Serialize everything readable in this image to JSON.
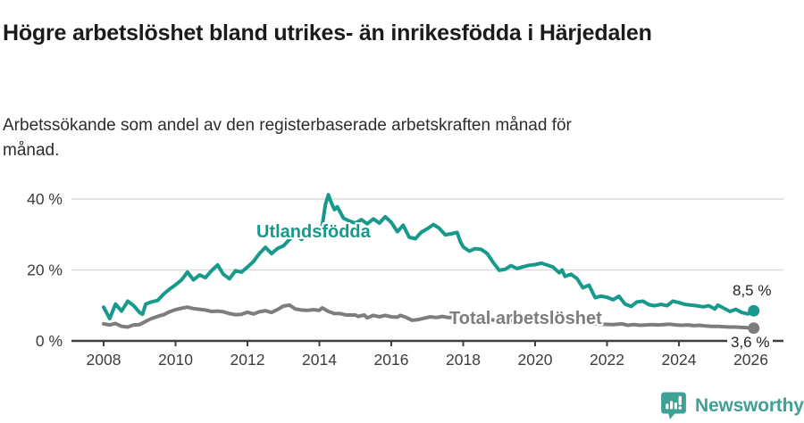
{
  "chart_data": {
    "type": "line",
    "title": "Högre arbetslöshet bland utrikes- än inrikesfödda i Härjedalen",
    "subtitle": "Arbetssökande som andel av den registerbaserade arbetskraften månad för månad.",
    "grid": true,
    "legend_position": "inline-labels-on-lines",
    "x_axis": {
      "ticks": [
        2008,
        2010,
        2012,
        2014,
        2016,
        2018,
        2020,
        2022,
        2024,
        2026
      ]
    },
    "y_axis": {
      "ticks": [
        0,
        20,
        40
      ],
      "suffix": " %",
      "range": [
        0,
        44
      ]
    },
    "series": [
      {
        "name": "Utlandsfödda",
        "color": "#17998c",
        "end_label": "8,5 %",
        "end_value": 8.5,
        "points": [
          [
            2008.0,
            9.5
          ],
          [
            2008.17,
            6.3
          ],
          [
            2008.33,
            10.4
          ],
          [
            2008.5,
            8.4
          ],
          [
            2008.67,
            11.2
          ],
          [
            2008.83,
            10.0
          ],
          [
            2009.0,
            8.0
          ],
          [
            2009.08,
            7.5
          ],
          [
            2009.17,
            10.4
          ],
          [
            2009.33,
            11.0
          ],
          [
            2009.5,
            11.4
          ],
          [
            2009.67,
            13.2
          ],
          [
            2009.83,
            14.6
          ],
          [
            2010.0,
            15.8
          ],
          [
            2010.17,
            17.2
          ],
          [
            2010.33,
            19.4
          ],
          [
            2010.5,
            17.2
          ],
          [
            2010.67,
            18.6
          ],
          [
            2010.83,
            17.8
          ],
          [
            2011.0,
            19.8
          ],
          [
            2011.17,
            21.4
          ],
          [
            2011.33,
            18.8
          ],
          [
            2011.5,
            17.5
          ],
          [
            2011.67,
            19.8
          ],
          [
            2011.83,
            19.4
          ],
          [
            2012.0,
            20.8
          ],
          [
            2012.17,
            22.4
          ],
          [
            2012.33,
            24.6
          ],
          [
            2012.5,
            26.4
          ],
          [
            2012.67,
            24.6
          ],
          [
            2012.83,
            26.0
          ],
          [
            2013.0,
            26.8
          ],
          [
            2013.17,
            28.6
          ],
          [
            2013.33,
            30.2
          ],
          [
            2013.5,
            28.6
          ],
          [
            2013.67,
            30.6
          ],
          [
            2013.83,
            29.8
          ],
          [
            2014.0,
            31.0
          ],
          [
            2014.08,
            32.5
          ],
          [
            2014.17,
            38.5
          ],
          [
            2014.25,
            41.2
          ],
          [
            2014.33,
            39.0
          ],
          [
            2014.42,
            37.0
          ],
          [
            2014.5,
            37.8
          ],
          [
            2014.67,
            34.6
          ],
          [
            2014.83,
            33.8
          ],
          [
            2015.0,
            33.2
          ],
          [
            2015.17,
            34.2
          ],
          [
            2015.33,
            33.0
          ],
          [
            2015.5,
            34.4
          ],
          [
            2015.67,
            33.2
          ],
          [
            2015.83,
            35.0
          ],
          [
            2016.0,
            33.4
          ],
          [
            2016.17,
            30.8
          ],
          [
            2016.33,
            32.6
          ],
          [
            2016.5,
            29.2
          ],
          [
            2016.67,
            28.8
          ],
          [
            2016.83,
            30.6
          ],
          [
            2017.0,
            31.6
          ],
          [
            2017.17,
            32.8
          ],
          [
            2017.33,
            31.8
          ],
          [
            2017.5,
            29.9
          ],
          [
            2017.67,
            30.2
          ],
          [
            2017.83,
            30.6
          ],
          [
            2017.92,
            28.0
          ],
          [
            2018.0,
            26.5
          ],
          [
            2018.17,
            25.3
          ],
          [
            2018.33,
            26.0
          ],
          [
            2018.5,
            25.8
          ],
          [
            2018.67,
            24.6
          ],
          [
            2018.83,
            22.2
          ],
          [
            2019.0,
            19.9
          ],
          [
            2019.17,
            20.2
          ],
          [
            2019.33,
            21.2
          ],
          [
            2019.5,
            20.4
          ],
          [
            2019.67,
            20.9
          ],
          [
            2019.83,
            21.3
          ],
          [
            2020.0,
            21.5
          ],
          [
            2020.17,
            21.9
          ],
          [
            2020.33,
            21.4
          ],
          [
            2020.5,
            20.8
          ],
          [
            2020.67,
            19.2
          ],
          [
            2020.75,
            20.0
          ],
          [
            2020.83,
            18.2
          ],
          [
            2021.0,
            18.8
          ],
          [
            2021.17,
            17.5
          ],
          [
            2021.33,
            15.0
          ],
          [
            2021.5,
            15.7
          ],
          [
            2021.67,
            12.2
          ],
          [
            2021.83,
            12.6
          ],
          [
            2022.0,
            12.3
          ],
          [
            2022.17,
            11.6
          ],
          [
            2022.33,
            12.6
          ],
          [
            2022.5,
            10.4
          ],
          [
            2022.67,
            9.7
          ],
          [
            2022.83,
            11.0
          ],
          [
            2023.0,
            11.2
          ],
          [
            2023.17,
            10.2
          ],
          [
            2023.33,
            9.9
          ],
          [
            2023.5,
            10.3
          ],
          [
            2023.67,
            9.9
          ],
          [
            2023.83,
            11.2
          ],
          [
            2024.0,
            10.8
          ],
          [
            2024.17,
            10.3
          ],
          [
            2024.33,
            10.1
          ],
          [
            2024.5,
            9.9
          ],
          [
            2024.67,
            9.6
          ],
          [
            2024.83,
            9.9
          ],
          [
            2025.0,
            9.0
          ],
          [
            2025.08,
            10.1
          ],
          [
            2025.25,
            9.2
          ],
          [
            2025.42,
            8.3
          ],
          [
            2025.58,
            8.9
          ],
          [
            2025.75,
            8.0
          ],
          [
            2025.92,
            7.6
          ],
          [
            2026.08,
            8.5
          ]
        ]
      },
      {
        "name": "Total arbetslöshet",
        "color": "#7d7d7d",
        "end_label": "3,6 %",
        "end_value": 3.6,
        "points": [
          [
            2008.0,
            4.8
          ],
          [
            2008.17,
            4.5
          ],
          [
            2008.33,
            4.9
          ],
          [
            2008.5,
            4.1
          ],
          [
            2008.67,
            3.9
          ],
          [
            2008.83,
            4.5
          ],
          [
            2009.0,
            4.6
          ],
          [
            2009.17,
            5.5
          ],
          [
            2009.33,
            6.3
          ],
          [
            2009.5,
            6.9
          ],
          [
            2009.67,
            7.4
          ],
          [
            2009.83,
            8.2
          ],
          [
            2010.0,
            8.8
          ],
          [
            2010.17,
            9.2
          ],
          [
            2010.33,
            9.5
          ],
          [
            2010.5,
            9.1
          ],
          [
            2010.67,
            8.9
          ],
          [
            2010.83,
            8.7
          ],
          [
            2011.0,
            8.3
          ],
          [
            2011.17,
            8.4
          ],
          [
            2011.33,
            8.2
          ],
          [
            2011.5,
            7.7
          ],
          [
            2011.67,
            7.4
          ],
          [
            2011.83,
            7.5
          ],
          [
            2012.0,
            8.1
          ],
          [
            2012.17,
            7.6
          ],
          [
            2012.33,
            8.2
          ],
          [
            2012.5,
            8.5
          ],
          [
            2012.67,
            8.0
          ],
          [
            2012.83,
            8.8
          ],
          [
            2013.0,
            9.8
          ],
          [
            2013.17,
            10.1
          ],
          [
            2013.33,
            9.0
          ],
          [
            2013.5,
            8.7
          ],
          [
            2013.67,
            8.6
          ],
          [
            2013.83,
            8.8
          ],
          [
            2014.0,
            8.6
          ],
          [
            2014.08,
            9.3
          ],
          [
            2014.25,
            8.3
          ],
          [
            2014.42,
            7.7
          ],
          [
            2014.58,
            7.7
          ],
          [
            2014.75,
            7.3
          ],
          [
            2015.0,
            7.3
          ],
          [
            2015.08,
            6.9
          ],
          [
            2015.25,
            7.3
          ],
          [
            2015.33,
            6.5
          ],
          [
            2015.5,
            7.2
          ],
          [
            2015.67,
            6.8
          ],
          [
            2015.83,
            7.2
          ],
          [
            2016.0,
            6.8
          ],
          [
            2016.17,
            6.7
          ],
          [
            2016.25,
            7.2
          ],
          [
            2016.42,
            6.6
          ],
          [
            2016.58,
            5.8
          ],
          [
            2016.75,
            6.0
          ],
          [
            2016.92,
            6.4
          ],
          [
            2017.08,
            6.8
          ],
          [
            2017.25,
            6.6
          ],
          [
            2017.42,
            6.9
          ],
          [
            2017.58,
            6.6
          ],
          [
            2017.75,
            6.6
          ],
          [
            2017.92,
            6.5
          ],
          [
            2018.17,
            6.3
          ],
          [
            2018.5,
            6.1
          ],
          [
            2018.83,
            5.9
          ],
          [
            2019.17,
            5.8
          ],
          [
            2019.5,
            5.7
          ],
          [
            2019.83,
            5.8
          ],
          [
            2020.17,
            5.9
          ],
          [
            2020.5,
            5.7
          ],
          [
            2020.83,
            5.4
          ],
          [
            2021.17,
            5.1
          ],
          [
            2021.5,
            4.9
          ],
          [
            2021.83,
            4.7
          ],
          [
            2022.17,
            4.6
          ],
          [
            2022.42,
            4.8
          ],
          [
            2022.58,
            4.4
          ],
          [
            2022.75,
            4.6
          ],
          [
            2022.92,
            4.4
          ],
          [
            2023.08,
            4.5
          ],
          [
            2023.25,
            4.6
          ],
          [
            2023.42,
            4.5
          ],
          [
            2023.58,
            4.6
          ],
          [
            2023.75,
            4.7
          ],
          [
            2023.92,
            4.5
          ],
          [
            2024.08,
            4.4
          ],
          [
            2024.25,
            4.5
          ],
          [
            2024.42,
            4.3
          ],
          [
            2024.58,
            4.4
          ],
          [
            2024.75,
            4.2
          ],
          [
            2024.92,
            4.1
          ],
          [
            2025.08,
            4.1
          ],
          [
            2025.25,
            4.0
          ],
          [
            2025.42,
            3.9
          ],
          [
            2025.58,
            3.9
          ],
          [
            2025.75,
            3.8
          ],
          [
            2025.92,
            3.7
          ],
          [
            2026.08,
            3.6
          ]
        ]
      }
    ]
  },
  "footer": {
    "brand": "Newsworthy",
    "brand_color": "#3fa096",
    "icon": "newsworthy-speech-bubble-chart-icon"
  }
}
